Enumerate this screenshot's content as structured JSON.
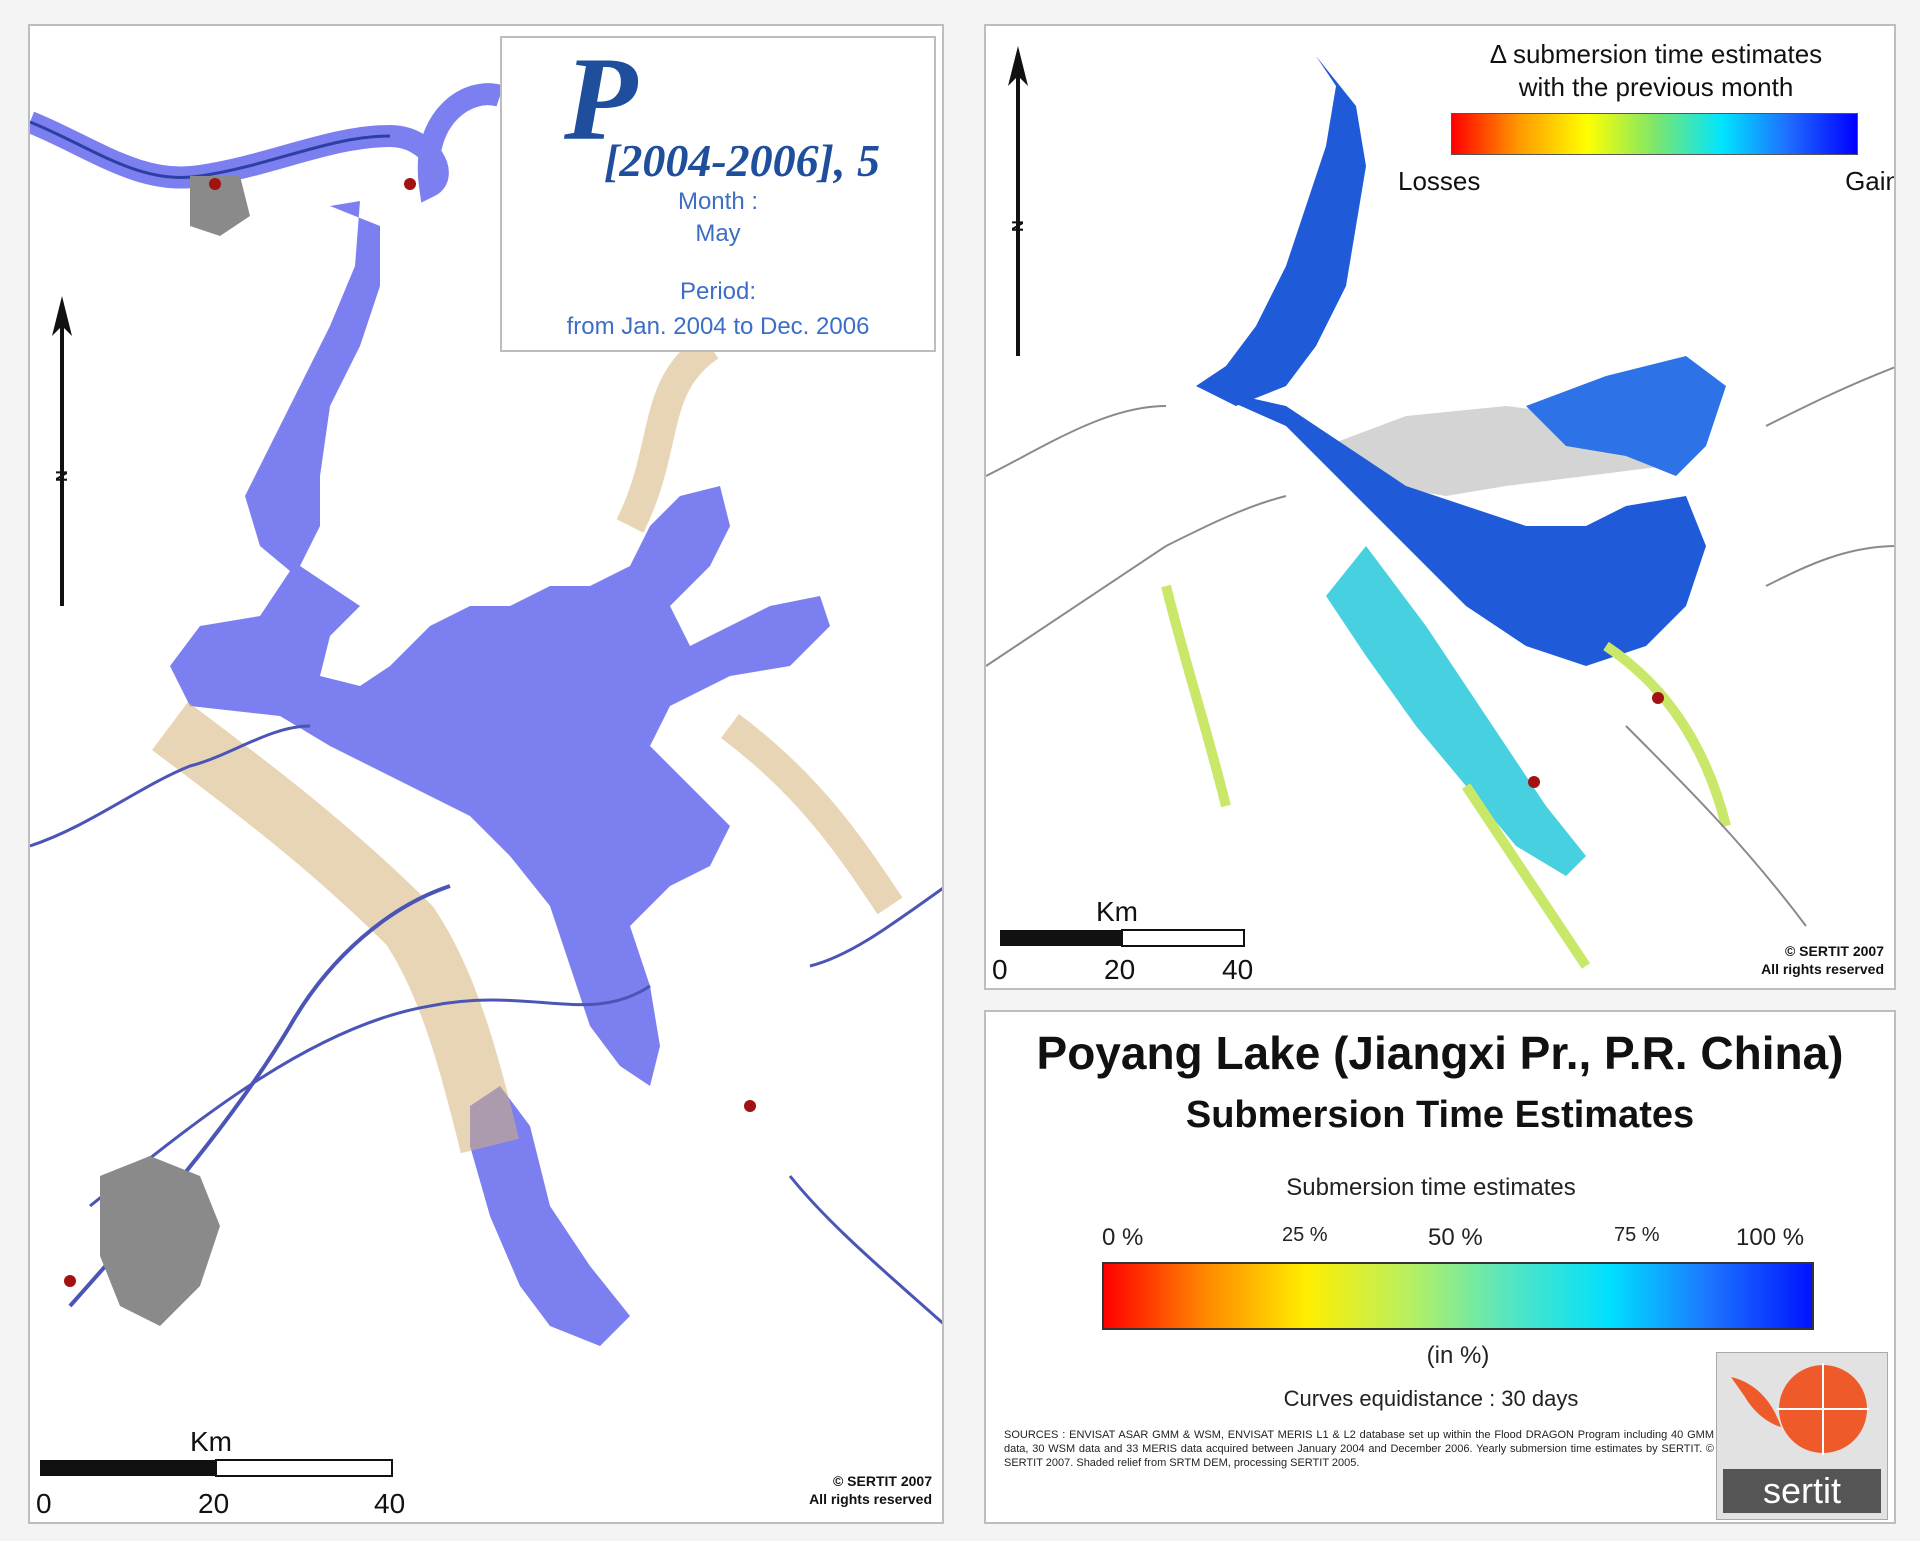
{
  "left_map": {
    "title_letter": "P",
    "title_period": "[2004-2006], 5",
    "month_label": "Month :",
    "month_value": "May",
    "period_label": "Period:",
    "period_value": "from Jan. 2004 to Dec. 2006",
    "north_label": "N",
    "scale_unit": "Km",
    "scale_ticks": [
      "0",
      "20",
      "40"
    ],
    "credit_line1": "© SERTIT 2007",
    "credit_line2": "All rights reserved",
    "water_color": "#7b7ff0"
  },
  "right_map": {
    "north_label": "N",
    "legend_title_line1": "Δ submersion time estimates",
    "legend_title_line2": "with the previous month",
    "legend_low": "Losses",
    "legend_high": "Gain",
    "scale_unit": "Km",
    "scale_ticks": [
      "0",
      "20",
      "40"
    ],
    "credit_line1": "© SERTIT 2007",
    "credit_line2": "All rights reserved"
  },
  "info": {
    "title": "Poyang Lake (Jiangxi Pr., P.R. China)",
    "subtitle": "Submersion Time Estimates",
    "legend_title": "Submersion time estimates",
    "ticks": [
      "0 %",
      "25 %",
      "50 %",
      "75 %",
      "100 %"
    ],
    "unit": "(in %)",
    "curves": "Curves equidistance : 30 days",
    "sources": "SOURCES : ENVISAT ASAR GMM & WSM, ENVISAT MERIS L1 & L2 database set up within the Flood DRAGON Program including 40 GMM data, 30 WSM data and 33 MERIS data acquired between January 2004 and December 2006. Yearly submersion time estimates by SERTIT. © SERTIT 2007. Shaded relief from SRTM DEM, processing SERTIT 2005.",
    "logo_text": "sertit"
  }
}
